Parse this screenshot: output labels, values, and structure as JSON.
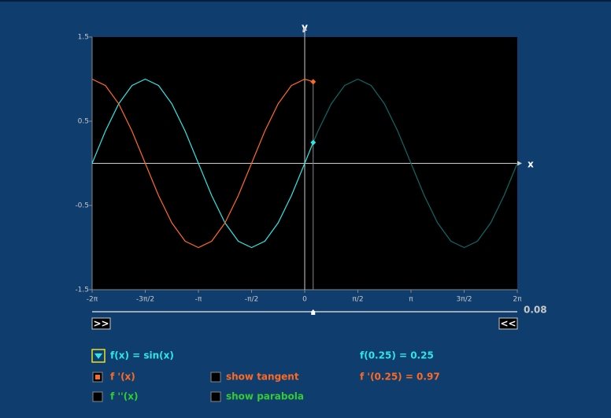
{
  "chart_data": {
    "type": "line",
    "xlabel": "x",
    "ylabel": "y",
    "x": [
      -6.2832,
      -5.8905,
      -5.4978,
      -5.1051,
      -4.7124,
      -4.3197,
      -3.927,
      -3.5343,
      -3.1416,
      -2.7489,
      -2.3562,
      -1.9635,
      -1.5708,
      -1.1781,
      -0.7854,
      -0.3927,
      0,
      0.25,
      0.3927,
      0.7854,
      1.1781,
      1.5708,
      1.9635,
      2.3562,
      2.7489,
      3.1416,
      3.5343,
      3.927,
      4.3197,
      4.7124,
      5.1051,
      5.4978,
      5.8905,
      6.2832
    ],
    "series": [
      {
        "color": "#2ee6e6",
        "values": [
          0,
          0.3827,
          0.7071,
          0.9239,
          1,
          0.9239,
          0.7071,
          0.3827,
          0,
          -0.3827,
          -0.7071,
          -0.9239,
          -1,
          -0.9239,
          -0.7071,
          -0.3827,
          0,
          0.2474,
          null,
          null,
          null,
          null,
          null,
          null,
          null,
          null,
          null,
          null,
          null,
          null,
          null,
          null,
          null,
          null
        ]
      },
      {
        "color": "#0b6a66",
        "values": [
          null,
          null,
          null,
          null,
          null,
          null,
          null,
          null,
          null,
          null,
          null,
          null,
          null,
          null,
          null,
          null,
          null,
          0.2474,
          0.3827,
          0.7071,
          0.9239,
          1,
          0.9239,
          0.7071,
          0.3827,
          0,
          -0.3827,
          -0.7071,
          -0.9239,
          -1,
          -0.9239,
          -0.7071,
          -0.3827,
          0
        ]
      },
      {
        "color": "#ff6a22",
        "values": [
          1,
          0.9239,
          0.7071,
          0.3827,
          0,
          -0.3827,
          -0.7071,
          -0.9239,
          -1,
          -0.9239,
          -0.7071,
          -0.3827,
          0,
          0.3827,
          0.7071,
          0.9239,
          1,
          0.9689,
          null,
          null,
          null,
          null,
          null,
          null,
          null,
          null,
          null,
          null,
          null,
          null,
          null,
          null,
          null,
          null
        ]
      }
    ],
    "xlim": [
      -6.2832,
      6.2832
    ],
    "ylim": [
      -1.5,
      1.5
    ],
    "xticks": [
      {
        "value": -6.2832,
        "label": "-2π"
      },
      {
        "value": -4.7124,
        "label": "-3π/2"
      },
      {
        "value": -3.1416,
        "label": "-π"
      },
      {
        "value": -1.5708,
        "label": "-π/2"
      },
      0,
      {
        "value": 1.5708,
        "label": "π/2"
      },
      {
        "value": 3.1416,
        "label": "π"
      },
      {
        "value": 4.7124,
        "label": "3π/2"
      },
      {
        "value": 6.2832,
        "label": "2π"
      }
    ],
    "yticks": [
      -1.5,
      -0.5,
      0.5,
      1.5
    ]
  },
  "controls": {
    "slider_value": "0.08",
    "play": ">>",
    "rewind": "<<",
    "function": "f(x) = sin(x)",
    "first_derivative": "f '(x)",
    "second_derivative": "f ''(x)",
    "tangent": "show tangent",
    "parabola": "show parabola",
    "readout_f": "f(0.25) = 0.25",
    "readout_df": "f '(0.25) = 0.97"
  }
}
